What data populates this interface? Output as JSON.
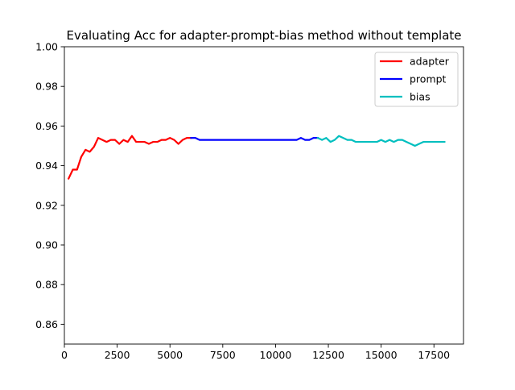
{
  "chart_data": {
    "type": "line",
    "title": "Evaluating Acc for adapter-prompt-bias method without template",
    "xlabel": "",
    "ylabel": "",
    "xlim": [
      0,
      18900
    ],
    "ylim": [
      0.85,
      1.0
    ],
    "x_ticks": [
      0,
      2500,
      5000,
      7500,
      10000,
      12500,
      15000,
      17500
    ],
    "x_tick_labels": [
      "0",
      "2500",
      "5000",
      "7500",
      "10000",
      "12500",
      "15000",
      "17500"
    ],
    "y_ticks": [
      0.86,
      0.88,
      0.9,
      0.92,
      0.94,
      0.96,
      0.98,
      1.0
    ],
    "y_tick_labels": [
      "0.86",
      "0.88",
      "0.90",
      "0.92",
      "0.94",
      "0.96",
      "0.98",
      "1.00"
    ],
    "grid": false,
    "legend_position": "top-right",
    "series": [
      {
        "name": "adapter",
        "color": "#ff0000",
        "x": [
          200,
          400,
          600,
          800,
          1000,
          1200,
          1400,
          1600,
          1800,
          2000,
          2200,
          2400,
          2600,
          2800,
          3000,
          3200,
          3400,
          3600,
          3800,
          4000,
          4200,
          4400,
          4600,
          4800,
          5000,
          5200,
          5400,
          5600,
          5800,
          6000
        ],
        "y": [
          0.9335,
          0.938,
          0.938,
          0.9445,
          0.948,
          0.947,
          0.9495,
          0.954,
          0.953,
          0.952,
          0.953,
          0.953,
          0.951,
          0.953,
          0.952,
          0.955,
          0.952,
          0.952,
          0.952,
          0.951,
          0.952,
          0.952,
          0.953,
          0.953,
          0.954,
          0.953,
          0.951,
          0.953,
          0.954,
          0.954
        ]
      },
      {
        "name": "prompt",
        "color": "#0000ff",
        "x": [
          6000,
          6200,
          6400,
          6600,
          6800,
          7000,
          7500,
          8000,
          8500,
          9000,
          9500,
          10000,
          10500,
          10800,
          11000,
          11200,
          11400,
          11600,
          11800,
          12000
        ],
        "y": [
          0.954,
          0.954,
          0.953,
          0.953,
          0.953,
          0.953,
          0.953,
          0.953,
          0.953,
          0.953,
          0.953,
          0.953,
          0.953,
          0.953,
          0.953,
          0.954,
          0.953,
          0.953,
          0.954,
          0.954
        ]
      },
      {
        "name": "bias",
        "color": "#00bfbf",
        "x": [
          12000,
          12200,
          12400,
          12600,
          12800,
          13000,
          13200,
          13400,
          13600,
          13800,
          14000,
          14200,
          14400,
          14600,
          14800,
          15000,
          15200,
          15400,
          15600,
          15800,
          16000,
          16200,
          16400,
          16600,
          16800,
          17000,
          17200,
          17400,
          17600,
          17800,
          18000
        ],
        "y": [
          0.954,
          0.953,
          0.954,
          0.952,
          0.953,
          0.955,
          0.954,
          0.953,
          0.953,
          0.952,
          0.952,
          0.952,
          0.952,
          0.952,
          0.952,
          0.953,
          0.952,
          0.953,
          0.952,
          0.953,
          0.953,
          0.952,
          0.951,
          0.95,
          0.951,
          0.952,
          0.952,
          0.952,
          0.952,
          0.952,
          0.952
        ]
      }
    ]
  }
}
